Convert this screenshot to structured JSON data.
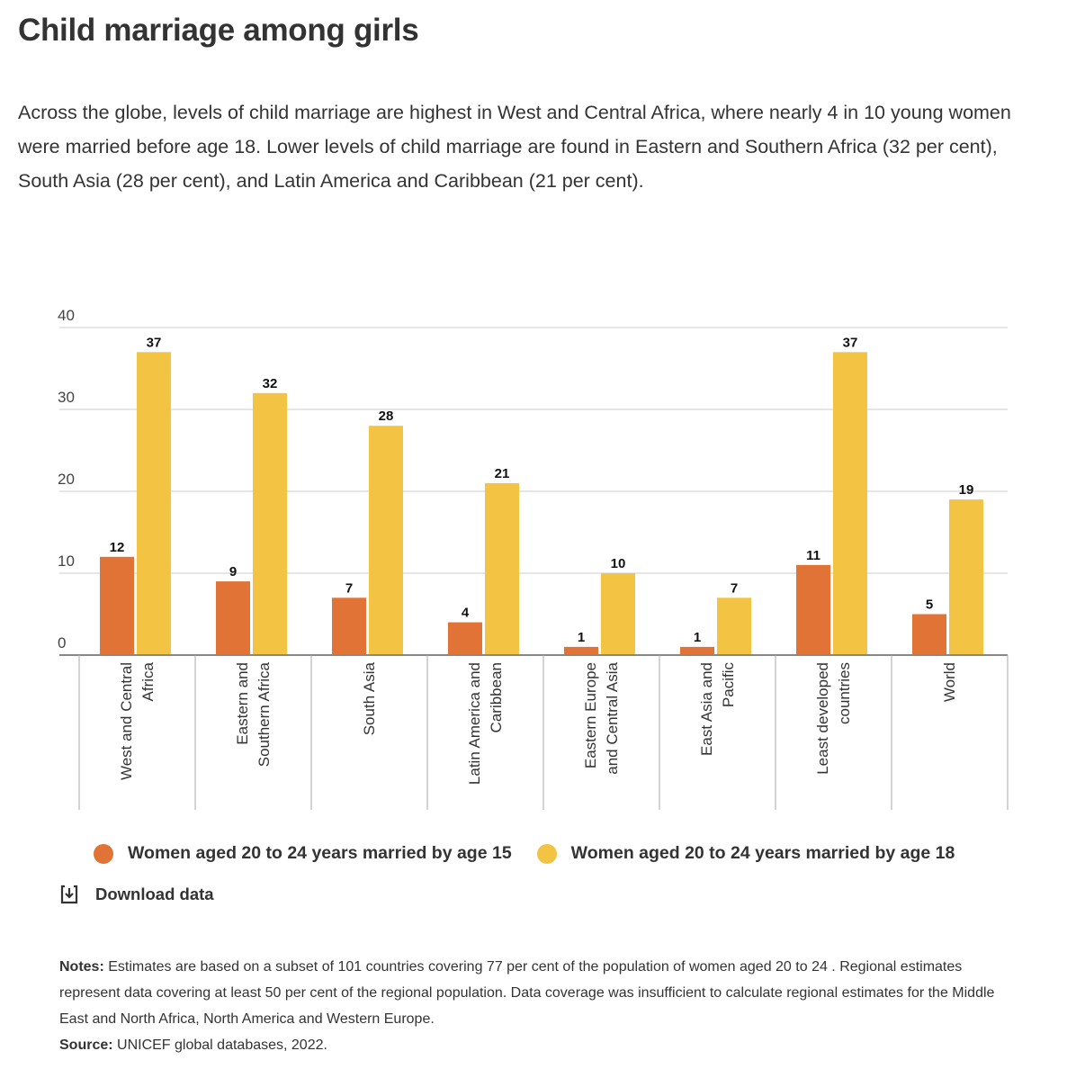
{
  "page": {
    "title": "Child marriage among girls",
    "subtitle": "Across the globe, levels of child marriage are highest in West and Central Africa, where nearly 4 in 10 young women were married before age 18. Lower levels of child marriage are found in Eastern and Southern Africa (32 per cent), South Asia (28 per cent), and Latin America and Caribbean (21 per cent).",
    "download_label": "Download data",
    "notes_label": "Notes:",
    "notes_text": " Estimates are based on a subset of 101 countries covering 77 per cent of the population of women aged 20 to 24 . Regional estimates represent data covering at least 50 per cent of the regional population. Data coverage was insufficient to calculate regional estimates for the Middle East and North Africa, North America and Western Europe.",
    "source_label": "Source:",
    "source_text": " UNICEF global databases, 2022."
  },
  "colors": {
    "age15": "#e07335",
    "age18": "#f3c343",
    "grid": "#cccccc",
    "axis": "#888888",
    "text": "#333333"
  },
  "chart_data": {
    "type": "bar",
    "categories": [
      [
        "West and Central",
        "Africa"
      ],
      [
        "Eastern and",
        "Southern Africa"
      ],
      [
        "South Asia"
      ],
      [
        "Latin America and",
        "Caribbean"
      ],
      [
        "Eastern Europe",
        "and Central Asia"
      ],
      [
        "East Asia and",
        "Pacific"
      ],
      [
        "Least developed",
        "countries"
      ],
      [
        "World"
      ]
    ],
    "series": [
      {
        "name": "Women aged 20 to 24 years married by age 15",
        "values": [
          12,
          9,
          7,
          4,
          1,
          1,
          11,
          5
        ]
      },
      {
        "name": "Women aged 20 to 24 years married by age 18",
        "values": [
          37,
          32,
          28,
          21,
          10,
          7,
          37,
          19
        ]
      }
    ],
    "ylim": [
      0,
      40
    ],
    "yticks": [
      0,
      10,
      20,
      30,
      40
    ],
    "grid": true,
    "legend": "bottom"
  }
}
